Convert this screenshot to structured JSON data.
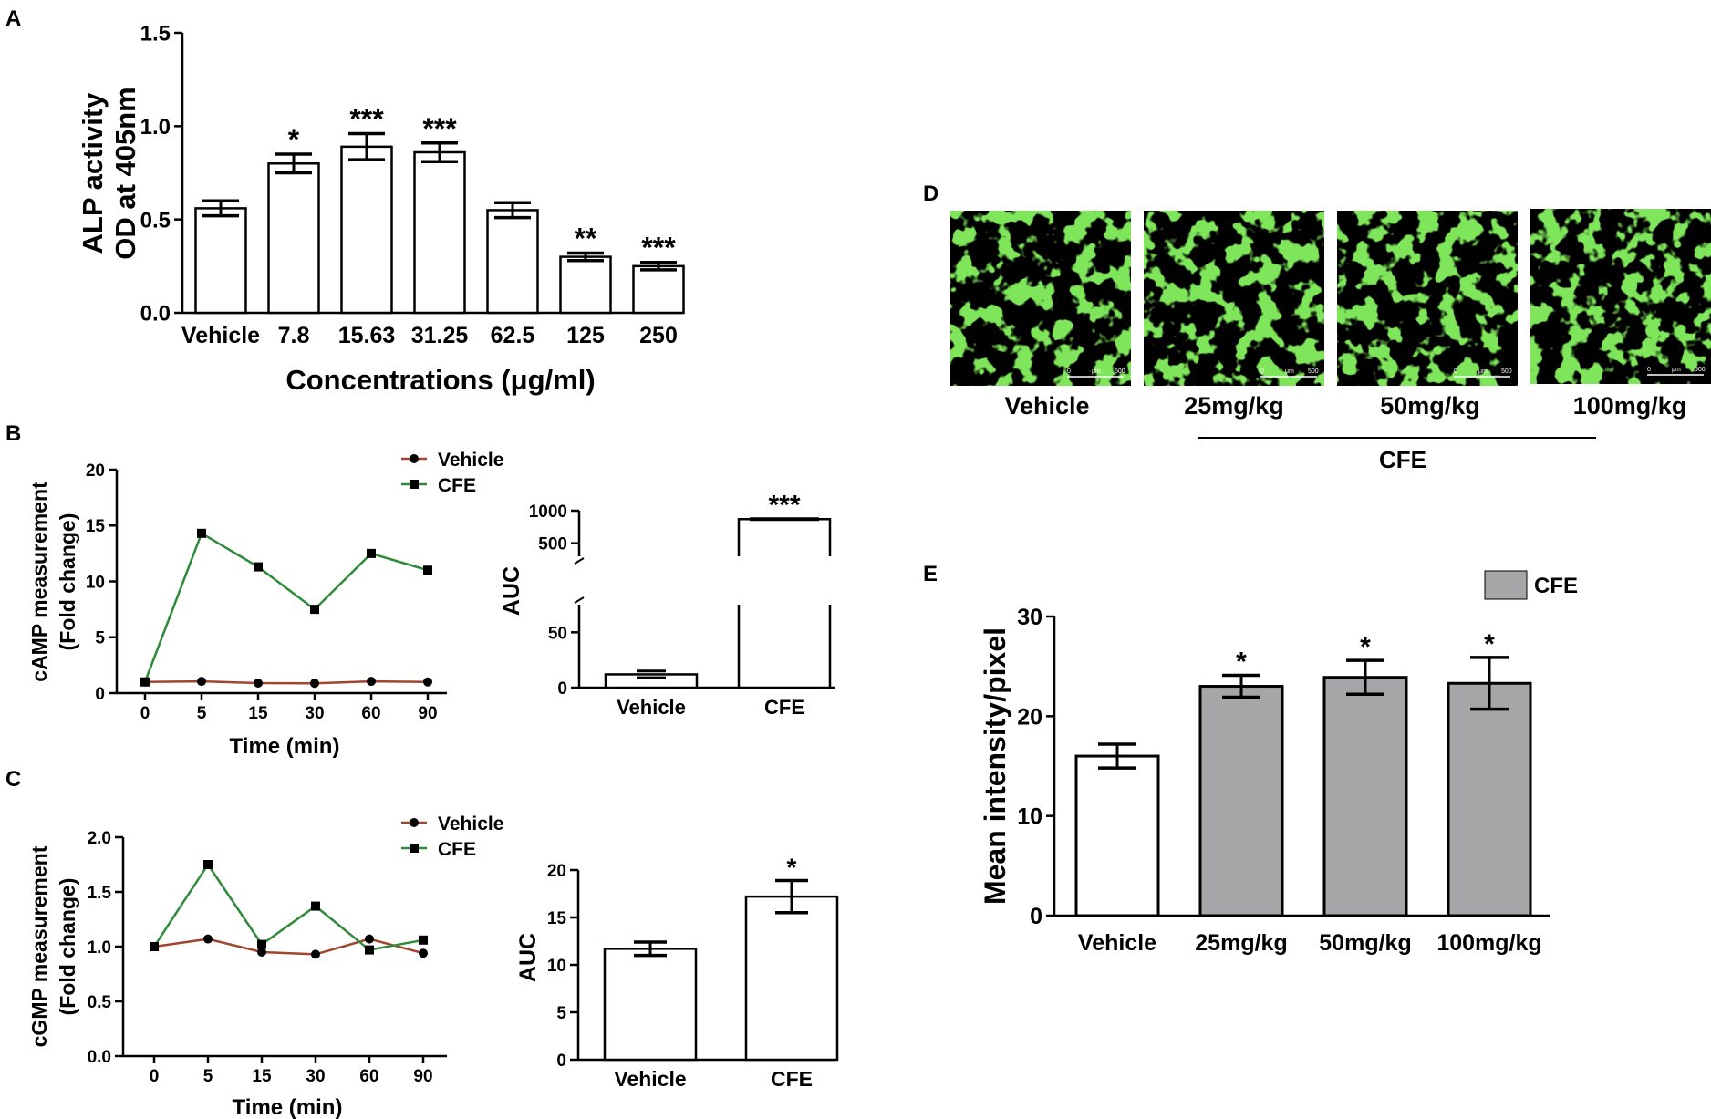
{
  "colors": {
    "vehicle_line": "#a0452f",
    "cfe_line": "#2f8a3a",
    "gray_bar": "#a6a6a8",
    "bone_green": "#35c419"
  },
  "panel_labels": {
    "a": "A",
    "b": "B",
    "c": "C",
    "d": "D",
    "e": "E"
  },
  "chart_data": [
    {
      "panel": "A",
      "type": "bar",
      "categories": [
        "Vehicle",
        "7.8",
        "15.63",
        "31.25",
        "62.5",
        "125",
        "250"
      ],
      "values": [
        0.56,
        0.8,
        0.89,
        0.86,
        0.55,
        0.3,
        0.25
      ],
      "errors": [
        0.04,
        0.05,
        0.07,
        0.05,
        0.04,
        0.02,
        0.02
      ],
      "significance": [
        "",
        "*",
        "***",
        "***",
        "",
        "**",
        "***"
      ],
      "ylabel_lines": [
        "ALP activity",
        "OD at 405nm"
      ],
      "xlabel": "Concentrations (μg/ml)",
      "ylim": [
        0,
        1.5
      ],
      "yticks": [
        "0.0",
        "0.5",
        "1.0",
        "1.5"
      ],
      "grid": false
    },
    {
      "panel": "B",
      "type": "line",
      "x": [
        "0",
        "5",
        "15",
        "30",
        "60",
        "90"
      ],
      "series": [
        {
          "name": "Vehicle",
          "marker": "circle",
          "values": [
            1.0,
            1.05,
            0.9,
            0.88,
            1.05,
            1.0
          ]
        },
        {
          "name": "CFE",
          "marker": "square",
          "values": [
            1.0,
            14.3,
            11.3,
            7.5,
            12.5,
            11.0
          ]
        }
      ],
      "ylabel_lines": [
        "cAMP measurement",
        "(Fold change)"
      ],
      "xlabel": "Time (min)",
      "ylim": [
        0,
        20
      ],
      "yticks": [
        "0",
        "5",
        "10",
        "15",
        "20"
      ],
      "legend": "top-right",
      "grid": false
    },
    {
      "panel": "B",
      "type": "bar",
      "categories": [
        "Vehicle",
        "CFE"
      ],
      "values": [
        12,
        870
      ],
      "errors": [
        3,
        12
      ],
      "significance": [
        "",
        "***"
      ],
      "ylabel": "AUC",
      "axis_break": [
        75,
        300
      ],
      "lower_yticks": [
        "0",
        "50"
      ],
      "upper_yticks": [
        "500",
        "1000"
      ],
      "ylim": [
        0,
        1000
      ],
      "grid": false
    },
    {
      "panel": "C",
      "type": "line",
      "x": [
        "0",
        "5",
        "15",
        "30",
        "60",
        "90"
      ],
      "series": [
        {
          "name": "Vehicle",
          "marker": "circle",
          "values": [
            1.0,
            1.07,
            0.95,
            0.93,
            1.07,
            0.94
          ]
        },
        {
          "name": "CFE",
          "marker": "square",
          "values": [
            1.0,
            1.75,
            1.02,
            1.37,
            0.97,
            1.06
          ]
        }
      ],
      "ylabel_lines": [
        "cGMP measurement",
        "(Fold change)"
      ],
      "xlabel": "Time (min)",
      "ylim": [
        0,
        2
      ],
      "yticks": [
        "0.0",
        "0.5",
        "1.0",
        "1.5",
        "2.0"
      ],
      "legend": "top-right",
      "grid": false
    },
    {
      "panel": "C",
      "type": "bar",
      "categories": [
        "Vehicle",
        "CFE"
      ],
      "values": [
        11.7,
        17.2
      ],
      "errors": [
        0.7,
        1.7
      ],
      "significance": [
        "",
        "*"
      ],
      "ylabel": "AUC",
      "ylim": [
        0,
        20
      ],
      "yticks": [
        "0",
        "5",
        "10",
        "15",
        "20"
      ],
      "grid": false
    },
    {
      "panel": "E",
      "type": "bar",
      "categories": [
        "Vehicle",
        "25mg/kg",
        "50mg/kg",
        "100mg/kg"
      ],
      "values": [
        16.0,
        23.0,
        23.9,
        23.3
      ],
      "errors": [
        1.2,
        1.1,
        1.7,
        2.6
      ],
      "significance": [
        "",
        "*",
        "*",
        "*"
      ],
      "bar_fill": [
        "white",
        "gray",
        "gray",
        "gray"
      ],
      "legend_entry": "CFE",
      "legend": "top-right",
      "ylabel": "Mean intensity/pixel",
      "ylim": [
        0,
        30
      ],
      "yticks": [
        "0",
        "10",
        "20",
        "30"
      ],
      "grid": false
    }
  ],
  "panel_d": {
    "image_labels": [
      "Vehicle",
      "25mg/kg",
      "50mg/kg",
      "100mg/kg"
    ],
    "group_label": "CFE",
    "scale_bar": {
      "left": "0",
      "unit": "μm",
      "right": "500"
    }
  }
}
